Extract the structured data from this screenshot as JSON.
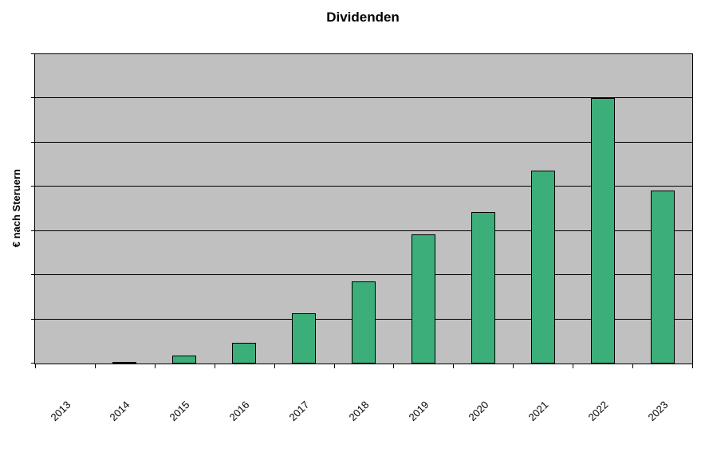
{
  "chart": {
    "title": "Dividenden",
    "ylabel": "€ nach Steruern"
  },
  "chart_data": {
    "type": "bar",
    "title": "Dividenden",
    "xlabel": "",
    "ylabel": "€ nach Steruern",
    "categories": [
      "2013",
      "2014",
      "2015",
      "2016",
      "2017",
      "2018",
      "2019",
      "2020",
      "2021",
      "2022",
      "2023"
    ],
    "values": [
      0,
      4,
      18,
      47,
      114,
      186,
      292,
      343,
      437,
      601,
      392
    ],
    "ylim": [
      0,
      700
    ],
    "gridline_step": 100,
    "grid": "horizontal",
    "y_tick_labels_visible": false,
    "legend": "none",
    "x_label_rotation_deg": -45,
    "bar_color": "#3cae79",
    "bar_border_color": "#000000",
    "plot_bg_color": "#c0c0c0",
    "gridline_color": "#000000",
    "background_color": "#ffffff"
  }
}
